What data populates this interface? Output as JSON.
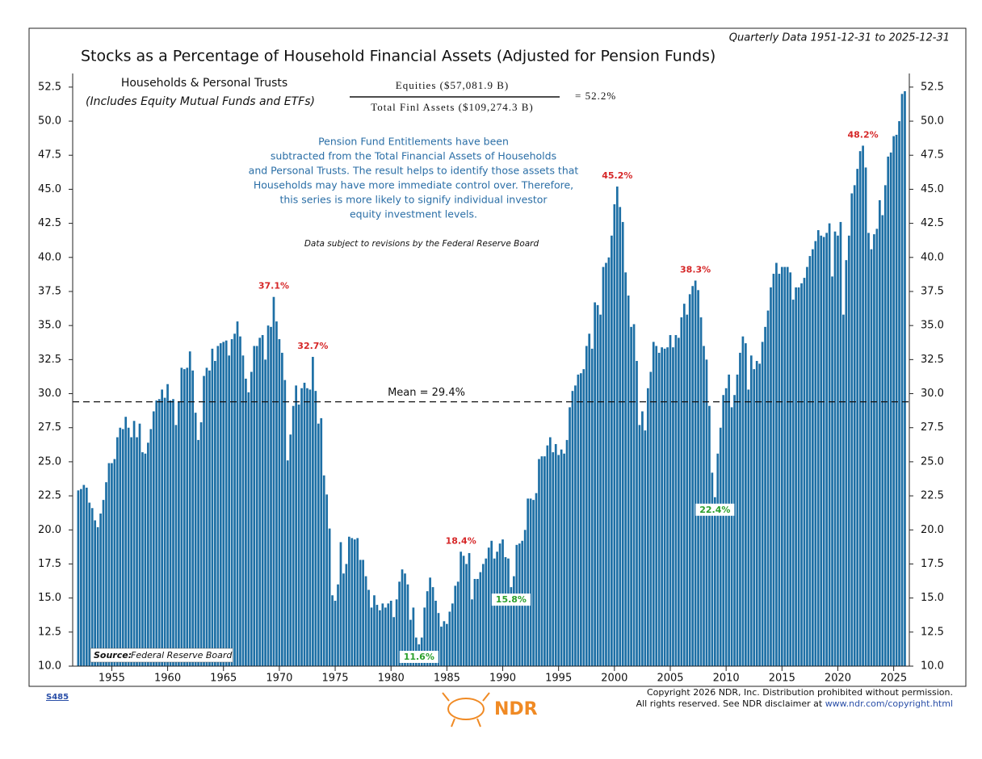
{
  "chart_data": {
    "type": "bar",
    "title": "Stocks as a Percentage of Household Financial Assets (Adjusted for Pension Funds)",
    "subtitle": "Quarterly Data 1951-12-31 to 2025-12-31",
    "panel_title": "Households & Personal Trusts",
    "panel_subtitle": "(Includes Equity Mutual Funds and ETFs)",
    "equation": {
      "numerator": "Equities ($57,081.9 B)",
      "denominator": "Total Finl Assets ($109,274.3 B)",
      "result": "= 52.2%"
    },
    "note_lines": [
      "Pension Fund Entitlements have been",
      "subtracted from the Total Financial Assets of Households",
      "and Personal Trusts. The result helps to identify those assets that",
      "Households may have more immediate control over. Therefore,",
      "this series is more likely to signify individual investor",
      "equity investment levels."
    ],
    "revision_note": "Data subject to revisions by the Federal Reserve Board",
    "source": {
      "label": "Source:",
      "text": "Federal Reserve Board"
    },
    "chart_id": "S485",
    "logo": "NDR",
    "copyright_line1": "Copyright 2026 NDR, Inc. Distribution prohibited without permission.",
    "copyright_line2": "All rights reserved. See NDR disclaimer at",
    "copyright_url": "www.ndr.com/copyright.html",
    "color": "#1d6fa5",
    "xlim": [
      1951.5,
      2026.4
    ],
    "xticks": [
      1955,
      1960,
      1965,
      1970,
      1975,
      1980,
      1985,
      1990,
      1995,
      2000,
      2005,
      2010,
      2015,
      2020,
      2025
    ],
    "ylim": [
      10,
      53.5
    ],
    "yticks": [
      {
        "value": 10,
        "label": "10.0"
      },
      12.5,
      {
        "value": 15,
        "label": "15.0"
      },
      17.5,
      {
        "value": 20,
        "label": "20.0"
      },
      22.5,
      {
        "value": 25,
        "label": "25.0"
      },
      27.5,
      {
        "value": 30,
        "label": "30.0"
      },
      32.5,
      {
        "value": 35,
        "label": "35.0"
      },
      37.5,
      {
        "value": 40,
        "label": "40.0"
      },
      42.5,
      {
        "value": 45,
        "label": "45.0"
      },
      47.5,
      {
        "value": 50,
        "label": "50.0"
      },
      52.5
    ],
    "mean_line": {
      "label": "Mean = 29.4%",
      "value": 29.4
    },
    "annotations": [
      {
        "label": "37.1%",
        "value": 37.1,
        "x": 1969.5,
        "color": "#d62728",
        "position": "above"
      },
      {
        "label": "32.7%",
        "value": 32.7,
        "x": 1973,
        "color": "#d62728",
        "position": "above"
      },
      {
        "label": "11.6%",
        "value": 11.6,
        "x": 1982.5,
        "color": "#2ca02c",
        "position": "below"
      },
      {
        "label": "18.4%",
        "value": 18.4,
        "x": 1986.25,
        "color": "#d62728",
        "position": "above"
      },
      {
        "label": "15.8%",
        "value": 15.8,
        "x": 1990.75,
        "color": "#2ca02c",
        "position": "below"
      },
      {
        "label": "45.2%",
        "value": 45.2,
        "x": 2000.25,
        "color": "#d62728",
        "position": "above"
      },
      {
        "label": "38.3%",
        "value": 38.3,
        "x": 2007.25,
        "color": "#d62728",
        "position": "above"
      },
      {
        "label": "22.4%",
        "value": 22.4,
        "x": 2009,
        "color": "#2ca02c",
        "position": "below"
      },
      {
        "label": "48.2%",
        "value": 48.2,
        "x": 2022.25,
        "color": "#d62728",
        "position": "above"
      }
    ],
    "x": [
      1952,
      1952.25,
      1952.5,
      1952.75,
      1953,
      1953.25,
      1953.5,
      1953.75,
      1954,
      1954.25,
      1954.5,
      1954.75,
      1955,
      1955.25,
      1955.5,
      1955.75,
      1956,
      1956.25,
      1956.5,
      1956.75,
      1957,
      1957.25,
      1957.5,
      1957.75,
      1958,
      1958.25,
      1958.5,
      1958.75,
      1959,
      1959.25,
      1959.5,
      1959.75,
      1960,
      1960.25,
      1960.5,
      1960.75,
      1961,
      1961.25,
      1961.5,
      1961.75,
      1962,
      1962.25,
      1962.5,
      1962.75,
      1963,
      1963.25,
      1963.5,
      1963.75,
      1964,
      1964.25,
      1964.5,
      1964.75,
      1965,
      1965.25,
      1965.5,
      1965.75,
      1966,
      1966.25,
      1966.5,
      1966.75,
      1967,
      1967.25,
      1967.5,
      1967.75,
      1968,
      1968.25,
      1968.5,
      1968.75,
      1969,
      1969.25,
      1969.5,
      1969.75,
      1970,
      1970.25,
      1970.5,
      1970.75,
      1971,
      1971.25,
      1971.5,
      1971.75,
      1972,
      1972.25,
      1972.5,
      1972.75,
      1973,
      1973.25,
      1973.5,
      1973.75,
      1974,
      1974.25,
      1974.5,
      1974.75,
      1975,
      1975.25,
      1975.5,
      1975.75,
      1976,
      1976.25,
      1976.5,
      1976.75,
      1977,
      1977.25,
      1977.5,
      1977.75,
      1978,
      1978.25,
      1978.5,
      1978.75,
      1979,
      1979.25,
      1979.5,
      1979.75,
      1980,
      1980.25,
      1980.5,
      1980.75,
      1981,
      1981.25,
      1981.5,
      1981.75,
      1982,
      1982.25,
      1982.5,
      1982.75,
      1983,
      1983.25,
      1983.5,
      1983.75,
      1984,
      1984.25,
      1984.5,
      1984.75,
      1985,
      1985.25,
      1985.5,
      1985.75,
      1986,
      1986.25,
      1986.5,
      1986.75,
      1987,
      1987.25,
      1987.5,
      1987.75,
      1988,
      1988.25,
      1988.5,
      1988.75,
      1989,
      1989.25,
      1989.5,
      1989.75,
      1990,
      1990.25,
      1990.5,
      1990.75,
      1991,
      1991.25,
      1991.5,
      1991.75,
      1992,
      1992.25,
      1992.5,
      1992.75,
      1993,
      1993.25,
      1993.5,
      1993.75,
      1994,
      1994.25,
      1994.5,
      1994.75,
      1995,
      1995.25,
      1995.5,
      1995.75,
      1996,
      1996.25,
      1996.5,
      1996.75,
      1997,
      1997.25,
      1997.5,
      1997.75,
      1998,
      1998.25,
      1998.5,
      1998.75,
      1999,
      1999.25,
      1999.5,
      1999.75,
      2000,
      2000.25,
      2000.5,
      2000.75,
      2001,
      2001.25,
      2001.5,
      2001.75,
      2002,
      2002.25,
      2002.5,
      2002.75,
      2003,
      2003.25,
      2003.5,
      2003.75,
      2004,
      2004.25,
      2004.5,
      2004.75,
      2005,
      2005.25,
      2005.5,
      2005.75,
      2006,
      2006.25,
      2006.5,
      2006.75,
      2007,
      2007.25,
      2007.5,
      2007.75,
      2008,
      2008.25,
      2008.5,
      2008.75,
      2009,
      2009.25,
      2009.5,
      2009.75,
      2010,
      2010.25,
      2010.5,
      2010.75,
      2011,
      2011.25,
      2011.5,
      2011.75,
      2012,
      2012.25,
      2012.5,
      2012.75,
      2013,
      2013.25,
      2013.5,
      2013.75,
      2014,
      2014.25,
      2014.5,
      2014.75,
      2015,
      2015.25,
      2015.5,
      2015.75,
      2016,
      2016.25,
      2016.5,
      2016.75,
      2017,
      2017.25,
      2017.5,
      2017.75,
      2018,
      2018.25,
      2018.5,
      2018.75,
      2019,
      2019.25,
      2019.5,
      2019.75,
      2020,
      2020.25,
      2020.5,
      2020.75,
      2021,
      2021.25,
      2021.5,
      2021.75,
      2022,
      2022.25,
      2022.5,
      2022.75,
      2023,
      2023.25,
      2023.5,
      2023.75,
      2024,
      2024.25,
      2024.5,
      2024.75,
      2025,
      2025.25,
      2025.5,
      2025.75,
      2026
    ],
    "values": [
      22.9,
      23.0,
      23.3,
      23.1,
      22.0,
      21.6,
      20.7,
      20.2,
      21.2,
      22.2,
      23.5,
      24.9,
      24.9,
      25.2,
      26.8,
      27.5,
      27.4,
      28.3,
      27.5,
      26.8,
      28.0,
      26.8,
      27.8,
      25.7,
      25.6,
      26.4,
      27.4,
      28.7,
      29.5,
      29.6,
      30.3,
      29.7,
      30.7,
      29.5,
      29.6,
      27.7,
      29.4,
      31.9,
      31.8,
      31.9,
      33.1,
      31.7,
      28.6,
      26.6,
      27.9,
      31.3,
      31.9,
      31.7,
      33.3,
      32.4,
      33.5,
      33.7,
      33.8,
      33.9,
      32.8,
      34.0,
      34.4,
      35.3,
      34.2,
      32.8,
      31.1,
      30.1,
      31.6,
      33.5,
      33.5,
      34.1,
      34.3,
      32.5,
      35.0,
      34.9,
      37.1,
      35.3,
      34.0,
      33.0,
      31.0,
      25.1,
      27.0,
      29.1,
      30.6,
      29.2,
      30.4,
      30.8,
      30.4,
      30.3,
      32.7,
      30.2,
      27.8,
      28.2,
      24.0,
      22.6,
      20.1,
      15.2,
      14.8,
      16.0,
      19.1,
      16.8,
      17.5,
      19.5,
      19.4,
      19.3,
      19.4,
      17.8,
      17.8,
      16.6,
      15.6,
      14.3,
      15.2,
      14.5,
      14.1,
      14.6,
      14.3,
      14.6,
      14.8,
      13.6,
      14.9,
      16.2,
      17.1,
      16.8,
      16.0,
      13.4,
      14.3,
      12.1,
      11.6,
      12.1,
      14.3,
      15.5,
      16.5,
      15.8,
      14.8,
      13.9,
      12.9,
      13.3,
      13.1,
      14.0,
      14.6,
      15.9,
      16.2,
      18.4,
      18.1,
      17.5,
      18.3,
      14.9,
      16.4,
      16.4,
      16.9,
      17.5,
      17.9,
      18.7,
      19.2,
      17.9,
      18.4,
      19.0,
      19.3,
      18.0,
      17.9,
      15.8,
      16.6,
      18.9,
      19.0,
      19.2,
      20.0,
      22.3,
      22.3,
      22.2,
      22.7,
      25.2,
      25.4,
      25.4,
      26.2,
      26.8,
      25.7,
      26.3,
      25.5,
      25.9,
      25.6,
      26.6,
      29.0,
      30.2,
      30.6,
      31.4,
      31.5,
      31.8,
      33.5,
      34.4,
      33.3,
      36.7,
      36.5,
      35.8,
      39.3,
      39.6,
      40.0,
      41.6,
      43.9,
      45.2,
      43.7,
      42.6,
      38.9,
      37.2,
      34.9,
      35.1,
      32.4,
      27.7,
      28.7,
      27.3,
      30.4,
      31.6,
      33.8,
      33.5,
      33.0,
      33.4,
      33.3,
      33.4,
      34.3,
      33.4,
      34.3,
      34.1,
      35.6,
      36.6,
      35.8,
      37.3,
      37.9,
      38.3,
      37.6,
      35.6,
      33.5,
      32.5,
      29.1,
      24.2,
      22.4,
      25.6,
      27.5,
      29.9,
      30.4,
      31.4,
      29.0,
      29.9,
      31.4,
      33.0,
      34.2,
      33.7,
      30.3,
      32.8,
      31.8,
      32.4,
      32.2,
      33.8,
      34.9,
      36.1,
      37.8,
      38.8,
      39.6,
      38.8,
      39.3,
      39.3,
      39.3,
      38.9,
      36.9,
      37.8,
      37.8,
      38.1,
      38.5,
      39.3,
      40.1,
      40.6,
      41.2,
      42.0,
      41.6,
      41.5,
      41.8,
      42.5,
      38.6,
      41.9,
      41.6,
      42.6,
      35.8,
      39.8,
      41.6,
      44.7,
      45.3,
      46.5,
      47.8,
      48.2,
      46.6,
      41.8,
      40.6,
      41.7,
      42.1,
      44.2,
      43.1,
      45.3,
      47.4,
      47.7,
      48.9,
      49.0,
      50.0,
      52.0,
      52.2
    ]
  }
}
